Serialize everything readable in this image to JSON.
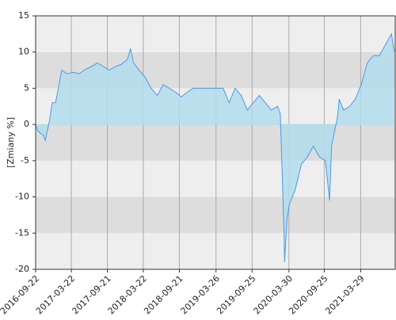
{
  "chart_data": {
    "type": "area",
    "y_label": "[Zmiany %]",
    "x": [
      "2016-09-22",
      "2016-10-01",
      "2016-10-15",
      "2016-11-01",
      "2016-11-10",
      "2016-12-01",
      "2016-12-15",
      "2017-01-01",
      "2017-01-15",
      "2017-02-01",
      "2017-03-01",
      "2017-04-01",
      "2017-05-01",
      "2017-06-01",
      "2017-07-01",
      "2017-08-01",
      "2017-09-01",
      "2017-10-01",
      "2017-11-01",
      "2017-12-01",
      "2018-01-01",
      "2018-01-16",
      "2018-02-01",
      "2018-03-01",
      "2018-04-01",
      "2018-05-01",
      "2018-06-01",
      "2018-07-01",
      "2018-08-01",
      "2018-09-01",
      "2018-10-01",
      "2018-11-01",
      "2018-12-01",
      "2019-01-01",
      "2019-02-01",
      "2019-03-01",
      "2019-04-01",
      "2019-05-01",
      "2019-06-01",
      "2019-07-01",
      "2019-08-01",
      "2019-09-01",
      "2019-10-01",
      "2019-11-01",
      "2019-12-01",
      "2020-01-01",
      "2020-02-01",
      "2020-02-15",
      "2020-02-25",
      "2020-03-05",
      "2020-03-08",
      "2020-03-20",
      "2020-04-01",
      "2020-05-01",
      "2020-06-01",
      "2020-07-01",
      "2020-08-01",
      "2020-09-01",
      "2020-10-01",
      "2020-10-22",
      "2020-11-01",
      "2020-12-01",
      "2020-12-10",
      "2021-01-01",
      "2021-02-01",
      "2021-03-01",
      "2021-04-01",
      "2021-05-01",
      "2021-06-01",
      "2021-07-01",
      "2021-08-01",
      "2021-09-01",
      "2021-09-15"
    ],
    "series": [
      {
        "color": "#4a9ae8",
        "fill": "#b3dcec",
        "values": [
          0,
          -0.8,
          -1.2,
          -1.5,
          -2.2,
          0.5,
          3,
          3,
          5,
          7.5,
          7,
          7.2,
          7,
          7.6,
          8,
          8.5,
          8,
          7.5,
          8,
          8.3,
          9,
          10.5,
          8.5,
          7.5,
          6.5,
          5,
          4,
          5.5,
          5,
          4.5,
          3.8,
          4.5,
          5,
          5,
          5,
          5,
          5,
          5,
          3,
          5,
          4,
          2,
          3,
          4,
          3,
          2,
          2.5,
          1.5,
          -7,
          -15,
          -19,
          -13,
          -11,
          -9,
          -5.5,
          -4.5,
          -3,
          -4.5,
          -5,
          -10.5,
          -3,
          1,
          3.5,
          2,
          2.5,
          3.5,
          5.5,
          8.5,
          9.5,
          9.5,
          11,
          12.5,
          10
        ]
      }
    ],
    "xlim": [
      "2016-09-22",
      "2021-09-20"
    ],
    "xticks": [
      "2016-09-22",
      "2017-03-22",
      "2017-09-21",
      "2018-03-22",
      "2018-09-21",
      "2019-03-26",
      "2019-09-25",
      "2020-03-30",
      "2020-09-25",
      "2021-03-29"
    ],
    "ylim": [
      -20,
      15
    ],
    "yticks": [
      -20,
      -15,
      -10,
      -5,
      0,
      5,
      10,
      15
    ],
    "grid": true
  }
}
